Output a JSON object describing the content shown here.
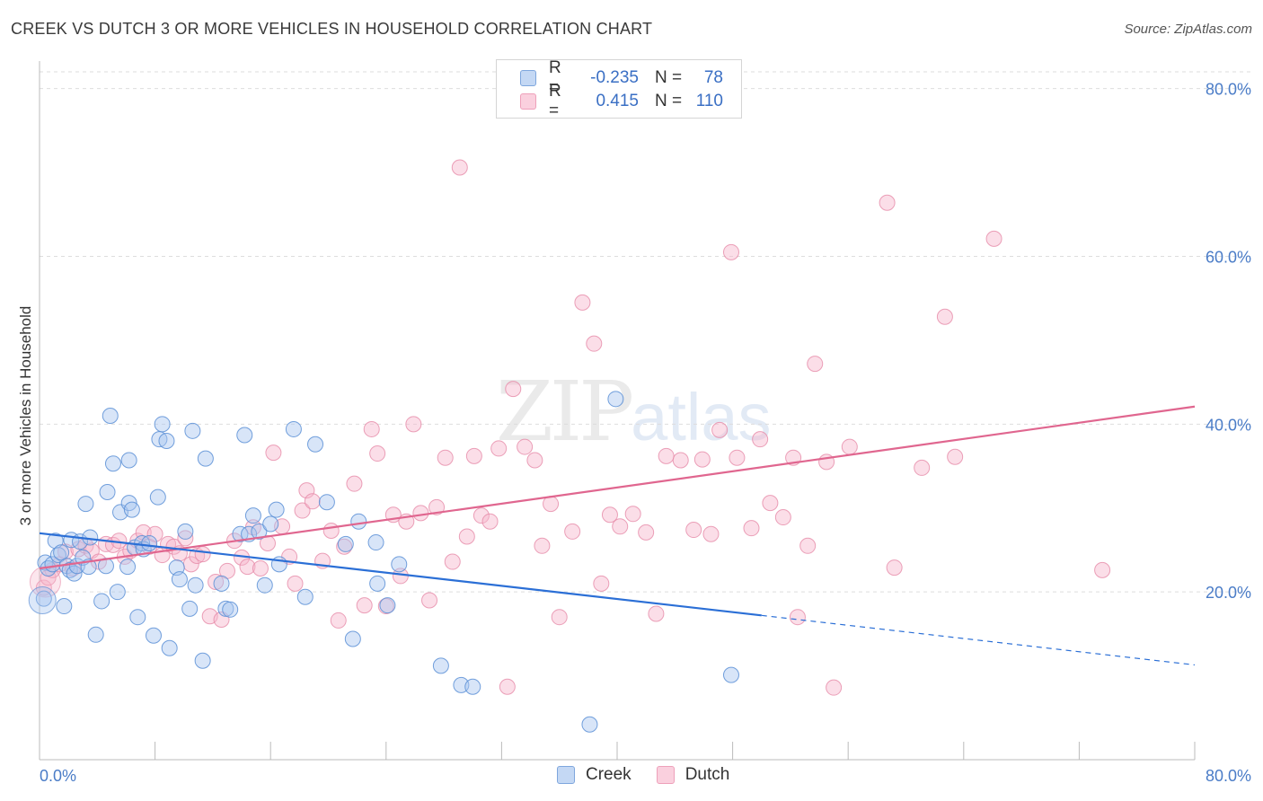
{
  "header": {
    "title": "CREEK VS DUTCH 3 OR MORE VEHICLES IN HOUSEHOLD CORRELATION CHART",
    "source": "Source: ZipAtlas.com"
  },
  "legend": {
    "rows": [
      {
        "r_label": "R =",
        "r_value": "-0.235",
        "n_label": "N =",
        "n_value": "78",
        "color": "#a8c6ef"
      },
      {
        "r_label": "R =",
        "r_value": "0.415",
        "n_label": "N =",
        "n_value": "110",
        "color": "#f7b6cb"
      }
    ]
  },
  "bottom_legend": {
    "creek": "Creek",
    "dutch": "Dutch"
  },
  "watermark": {
    "zip": "ZIP",
    "atlas": "atlas"
  },
  "colors": {
    "creek_fill": "#a8c6ef",
    "creek_stroke": "#5b8fd6",
    "creek_line": "#2b6fd6",
    "dutch_fill": "#f7b6cb",
    "dutch_stroke": "#e68aa8",
    "dutch_line": "#e0668f",
    "tick_text": "#4a7cc7",
    "grid": "#dddddd"
  },
  "chart_data": {
    "type": "scatter",
    "title": "CREEK VS DUTCH 3 OR MORE VEHICLES IN HOUSEHOLD CORRELATION CHART",
    "xlabel": "",
    "ylabel": "3 or more Vehicles in Household",
    "xlim": [
      0,
      80
    ],
    "ylim": [
      0,
      82
    ],
    "x_tick_labels": [
      "0.0%",
      "80.0%"
    ],
    "y_ticks": [
      20,
      40,
      60,
      80
    ],
    "y_tick_labels": [
      "20.0%",
      "40.0%",
      "60.0%",
      "80.0%"
    ],
    "grid": true,
    "series": [
      {
        "name": "Creek",
        "r": -0.235,
        "n": 78,
        "trend": {
          "x0": 0,
          "y0": 27.0,
          "x1": 50,
          "y1": 17.2,
          "dashed_to_x": 80,
          "dashed_to_y": 11.3
        },
        "points": [
          [
            0.3,
            19.2
          ],
          [
            0.4,
            23.5
          ],
          [
            0.6,
            22.8
          ],
          [
            0.9,
            23.3
          ],
          [
            1.1,
            26.1
          ],
          [
            1.3,
            24.4
          ],
          [
            1.5,
            24.7
          ],
          [
            1.7,
            18.3
          ],
          [
            1.9,
            23.1
          ],
          [
            2.1,
            22.6
          ],
          [
            2.2,
            26.2
          ],
          [
            2.4,
            22.2
          ],
          [
            2.6,
            23.1
          ],
          [
            2.8,
            26.0
          ],
          [
            3.0,
            24.1
          ],
          [
            3.2,
            30.5
          ],
          [
            3.4,
            23.0
          ],
          [
            3.5,
            26.5
          ],
          [
            3.9,
            14.9
          ],
          [
            4.3,
            18.9
          ],
          [
            4.6,
            23.1
          ],
          [
            4.7,
            31.9
          ],
          [
            4.9,
            41.0
          ],
          [
            5.1,
            35.3
          ],
          [
            5.4,
            20.0
          ],
          [
            5.6,
            29.5
          ],
          [
            6.1,
            23.0
          ],
          [
            6.2,
            35.7
          ],
          [
            6.2,
            30.6
          ],
          [
            6.4,
            29.8
          ],
          [
            6.6,
            25.3
          ],
          [
            6.8,
            17.0
          ],
          [
            7.1,
            25.8
          ],
          [
            7.2,
            25.1
          ],
          [
            7.6,
            25.8
          ],
          [
            7.9,
            14.8
          ],
          [
            8.2,
            31.3
          ],
          [
            8.3,
            38.2
          ],
          [
            8.5,
            40.0
          ],
          [
            8.8,
            38.0
          ],
          [
            9.0,
            13.3
          ],
          [
            9.5,
            22.9
          ],
          [
            9.7,
            21.5
          ],
          [
            10.1,
            27.2
          ],
          [
            10.4,
            18.0
          ],
          [
            10.6,
            39.2
          ],
          [
            10.8,
            20.8
          ],
          [
            11.3,
            11.8
          ],
          [
            11.5,
            35.9
          ],
          [
            12.6,
            21.0
          ],
          [
            12.9,
            18.0
          ],
          [
            13.2,
            17.9
          ],
          [
            13.9,
            26.9
          ],
          [
            14.2,
            38.7
          ],
          [
            14.5,
            26.9
          ],
          [
            14.8,
            29.1
          ],
          [
            15.2,
            27.2
          ],
          [
            15.6,
            20.8
          ],
          [
            16.0,
            28.1
          ],
          [
            16.4,
            29.8
          ],
          [
            16.6,
            23.3
          ],
          [
            17.6,
            39.4
          ],
          [
            18.4,
            19.4
          ],
          [
            19.1,
            37.6
          ],
          [
            19.9,
            30.7
          ],
          [
            21.2,
            25.7
          ],
          [
            21.7,
            14.4
          ],
          [
            22.1,
            28.4
          ],
          [
            23.3,
            25.9
          ],
          [
            23.4,
            21.0
          ],
          [
            24.1,
            18.4
          ],
          [
            24.9,
            23.3
          ],
          [
            27.8,
            11.2
          ],
          [
            29.2,
            8.9
          ],
          [
            30.0,
            8.7
          ],
          [
            38.1,
            4.2
          ],
          [
            39.9,
            43.0
          ],
          [
            47.9,
            10.1
          ]
        ]
      },
      {
        "name": "Dutch",
        "r": 0.415,
        "n": 110,
        "trend": {
          "x0": 0,
          "y0": 22.8,
          "x1": 80,
          "y1": 42.1
        },
        "points": [
          [
            0.3,
            20.5
          ],
          [
            0.6,
            21.7
          ],
          [
            0.9,
            22.6
          ],
          [
            1.4,
            23.3
          ],
          [
            1.8,
            24.8
          ],
          [
            2.3,
            22.8
          ],
          [
            2.7,
            25.1
          ],
          [
            3.2,
            25.5
          ],
          [
            3.6,
            24.9
          ],
          [
            4.1,
            23.6
          ],
          [
            4.6,
            25.7
          ],
          [
            5.1,
            25.6
          ],
          [
            5.5,
            26.1
          ],
          [
            5.9,
            24.2
          ],
          [
            6.3,
            24.9
          ],
          [
            6.8,
            26.1
          ],
          [
            7.2,
            27.1
          ],
          [
            7.6,
            25.4
          ],
          [
            8.0,
            26.9
          ],
          [
            8.5,
            24.4
          ],
          [
            8.9,
            25.7
          ],
          [
            9.3,
            25.4
          ],
          [
            9.7,
            24.6
          ],
          [
            10.1,
            26.4
          ],
          [
            10.5,
            23.3
          ],
          [
            10.9,
            24.3
          ],
          [
            11.3,
            24.5
          ],
          [
            11.8,
            17.1
          ],
          [
            12.2,
            21.2
          ],
          [
            12.6,
            16.7
          ],
          [
            13.0,
            22.5
          ],
          [
            13.5,
            26.1
          ],
          [
            14.0,
            24.1
          ],
          [
            14.4,
            23.0
          ],
          [
            14.8,
            27.7
          ],
          [
            15.3,
            22.8
          ],
          [
            15.8,
            25.8
          ],
          [
            16.2,
            36.6
          ],
          [
            16.8,
            27.8
          ],
          [
            17.3,
            24.2
          ],
          [
            17.7,
            21.0
          ],
          [
            18.2,
            29.7
          ],
          [
            18.5,
            32.1
          ],
          [
            18.9,
            30.8
          ],
          [
            19.6,
            23.7
          ],
          [
            20.2,
            27.3
          ],
          [
            20.7,
            16.6
          ],
          [
            21.1,
            25.4
          ],
          [
            21.8,
            32.9
          ],
          [
            22.5,
            18.4
          ],
          [
            23.0,
            39.4
          ],
          [
            23.4,
            36.5
          ],
          [
            24.0,
            18.3
          ],
          [
            24.5,
            29.2
          ],
          [
            25.0,
            21.9
          ],
          [
            25.4,
            28.4
          ],
          [
            25.9,
            40.0
          ],
          [
            26.4,
            29.4
          ],
          [
            27.0,
            19.0
          ],
          [
            27.5,
            30.1
          ],
          [
            28.1,
            36.0
          ],
          [
            28.6,
            23.6
          ],
          [
            29.1,
            70.6
          ],
          [
            29.6,
            26.6
          ],
          [
            30.1,
            36.2
          ],
          [
            30.6,
            29.1
          ],
          [
            31.2,
            28.4
          ],
          [
            31.8,
            37.1
          ],
          [
            32.4,
            8.7
          ],
          [
            32.8,
            44.2
          ],
          [
            33.6,
            37.3
          ],
          [
            34.3,
            35.7
          ],
          [
            34.8,
            25.5
          ],
          [
            35.4,
            30.5
          ],
          [
            36.0,
            17.0
          ],
          [
            36.9,
            27.2
          ],
          [
            37.6,
            54.5
          ],
          [
            38.4,
            49.6
          ],
          [
            38.9,
            21.0
          ],
          [
            39.5,
            29.2
          ],
          [
            40.2,
            27.8
          ],
          [
            41.1,
            29.3
          ],
          [
            42.0,
            27.1
          ],
          [
            42.7,
            17.4
          ],
          [
            43.4,
            36.2
          ],
          [
            44.4,
            35.7
          ],
          [
            45.3,
            27.4
          ],
          [
            45.9,
            35.8
          ],
          [
            46.5,
            26.9
          ],
          [
            47.1,
            39.3
          ],
          [
            47.9,
            60.5
          ],
          [
            48.3,
            36.0
          ],
          [
            49.3,
            27.6
          ],
          [
            49.9,
            38.2
          ],
          [
            50.6,
            30.6
          ],
          [
            51.5,
            28.9
          ],
          [
            52.2,
            36.0
          ],
          [
            52.5,
            17.0
          ],
          [
            53.2,
            25.5
          ],
          [
            53.7,
            47.2
          ],
          [
            54.5,
            35.5
          ],
          [
            55.0,
            8.6
          ],
          [
            56.1,
            37.3
          ],
          [
            58.7,
            66.4
          ],
          [
            59.2,
            22.9
          ],
          [
            61.1,
            34.8
          ],
          [
            62.7,
            52.8
          ],
          [
            63.4,
            36.1
          ],
          [
            66.1,
            62.1
          ],
          [
            73.6,
            22.6
          ]
        ]
      }
    ]
  }
}
